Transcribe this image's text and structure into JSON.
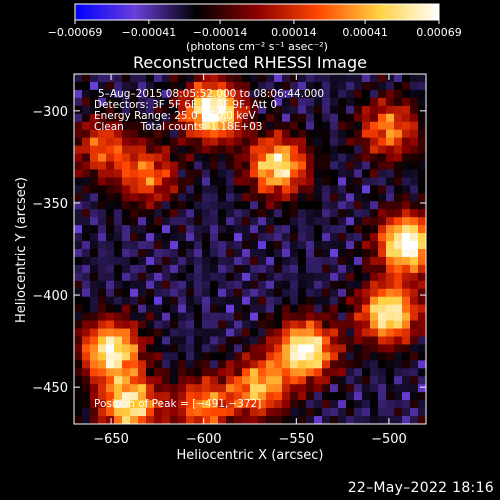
{
  "chart_data": {
    "type": "heatmap",
    "title": "Reconstructed RHESSI Image",
    "xlabel": "Heliocentric X (arcsec)",
    "ylabel": "Heliocentric Y (arcsec)",
    "xlim": [
      -670,
      -480
    ],
    "ylim": [
      -470,
      -280
    ],
    "x_ticks": [
      -650,
      -600,
      -550,
      -500
    ],
    "y_ticks": [
      -450,
      -400,
      -350,
      -300
    ],
    "x_tick_labels": [
      "−650",
      "−600",
      "−550",
      "−500"
    ],
    "y_tick_labels": [
      "−450",
      "−400",
      "−350",
      "−300"
    ],
    "colorbar": {
      "min": -0.00069,
      "max": 0.00069,
      "ticks": [
        -0.00069,
        -0.00041,
        -0.00014,
        0.00014,
        0.00041,
        0.00069
      ],
      "tick_labels": [
        "−0.00069",
        "−0.00041",
        "−0.00014",
        "0.00014",
        "0.00041",
        "0.00069"
      ],
      "units": "(photons cm⁻² s⁻¹ asec⁻²)",
      "colors": [
        "#0000ff",
        "#6a3ed8",
        "#000000",
        "#8b0000",
        "#ff4500",
        "#ffd040",
        "#ffffff"
      ]
    },
    "annotations": [
      "5–Aug–2015 08:05:52.000 to 08:06:44.000",
      "Detectors: 3F 5F 6F 7F 8F 9F, Att 0",
      "Energy Range: 25.0 – 50.0 keV",
      "Clean     Total counts: 1.18E+03"
    ],
    "peak": {
      "label": "Position of Peak = [−491,−372]",
      "x": -491,
      "y": -372
    },
    "bright_regions": [
      {
        "x": -595,
        "y": -300,
        "intensity": 1.0
      },
      {
        "x": -560,
        "y": -330,
        "intensity": 0.85
      },
      {
        "x": -500,
        "y": -310,
        "intensity": 0.6
      },
      {
        "x": -490,
        "y": -372,
        "intensity": 1.0
      },
      {
        "x": -500,
        "y": -410,
        "intensity": 0.9
      },
      {
        "x": -545,
        "y": -430,
        "intensity": 0.95
      },
      {
        "x": -570,
        "y": -450,
        "intensity": 0.7
      },
      {
        "x": -650,
        "y": -430,
        "intensity": 0.9
      },
      {
        "x": -640,
        "y": -460,
        "intensity": 0.85
      },
      {
        "x": -600,
        "y": -460,
        "intensity": 0.6
      },
      {
        "x": -630,
        "y": -335,
        "intensity": 0.55
      },
      {
        "x": -655,
        "y": -320,
        "intensity": 0.5
      }
    ]
  },
  "footer": {
    "date": "22–May–2022 18:16"
  }
}
